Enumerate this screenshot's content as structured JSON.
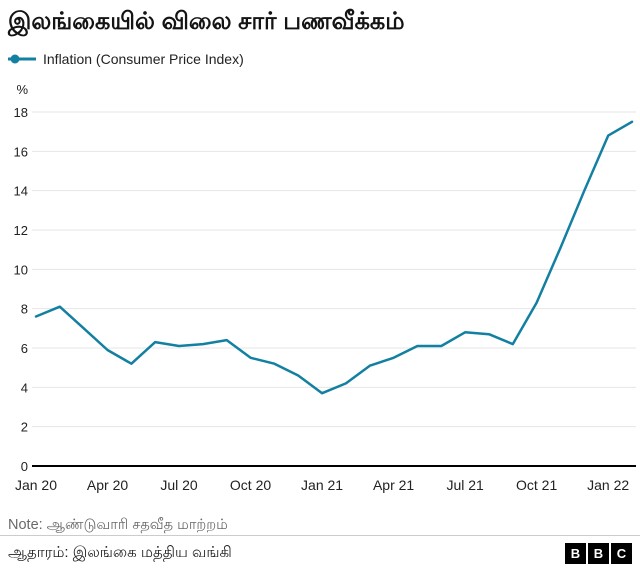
{
  "header": {
    "title": "இலங்கையில் விலை சார் பணவீக்கம்"
  },
  "legend": {
    "label": "Inflation (Consumer Price Index)"
  },
  "chart_data": {
    "type": "line",
    "title": "இலங்கையில் விலை சார் பணவீக்கம்",
    "x": [
      "Jan 20",
      "Feb 20",
      "Mar 20",
      "Apr 20",
      "May 20",
      "Jun 20",
      "Jul 20",
      "Aug 20",
      "Sep 20",
      "Oct 20",
      "Nov 20",
      "Dec 20",
      "Jan 21",
      "Feb 21",
      "Mar 21",
      "Apr 21",
      "May 21",
      "Jun 21",
      "Jul 21",
      "Aug 21",
      "Sep 21",
      "Oct 21",
      "Nov 21",
      "Dec 21",
      "Jan 22",
      "Feb 22"
    ],
    "series": [
      {
        "name": "Inflation (Consumer Price Index)",
        "values": [
          7.6,
          8.1,
          7.0,
          5.9,
          5.2,
          6.3,
          6.1,
          6.2,
          6.4,
          5.5,
          5.2,
          4.6,
          3.7,
          4.2,
          5.1,
          5.5,
          6.1,
          6.1,
          6.8,
          6.7,
          6.2,
          8.3,
          11.1,
          14.0,
          16.8,
          17.5
        ]
      }
    ],
    "xlabel": "",
    "ylabel": "%",
    "ylim": [
      0,
      18
    ],
    "yticks": [
      0,
      2,
      4,
      6,
      8,
      10,
      12,
      14,
      16,
      18
    ],
    "xtick_indices": [
      0,
      3,
      6,
      9,
      12,
      15,
      18,
      21,
      24
    ],
    "xtick_labels": [
      "Jan 20",
      "Apr 20",
      "Jul 20",
      "Oct 20",
      "Jan 21",
      "Apr 21",
      "Jul 21",
      "Oct 21",
      "Jan 22"
    ],
    "grid": true,
    "legend_position": "top-left",
    "line_color": "#1380A1",
    "grid_color": "#e6e6e6",
    "axis_color": "#000000"
  },
  "footer": {
    "note": "Note: ஆண்டுவாரி சதவீத மாற்றம்",
    "source": "ஆதாரம்: இலங்கை மத்திய வங்கி",
    "bbc_blocks": [
      "B",
      "B",
      "C"
    ]
  }
}
